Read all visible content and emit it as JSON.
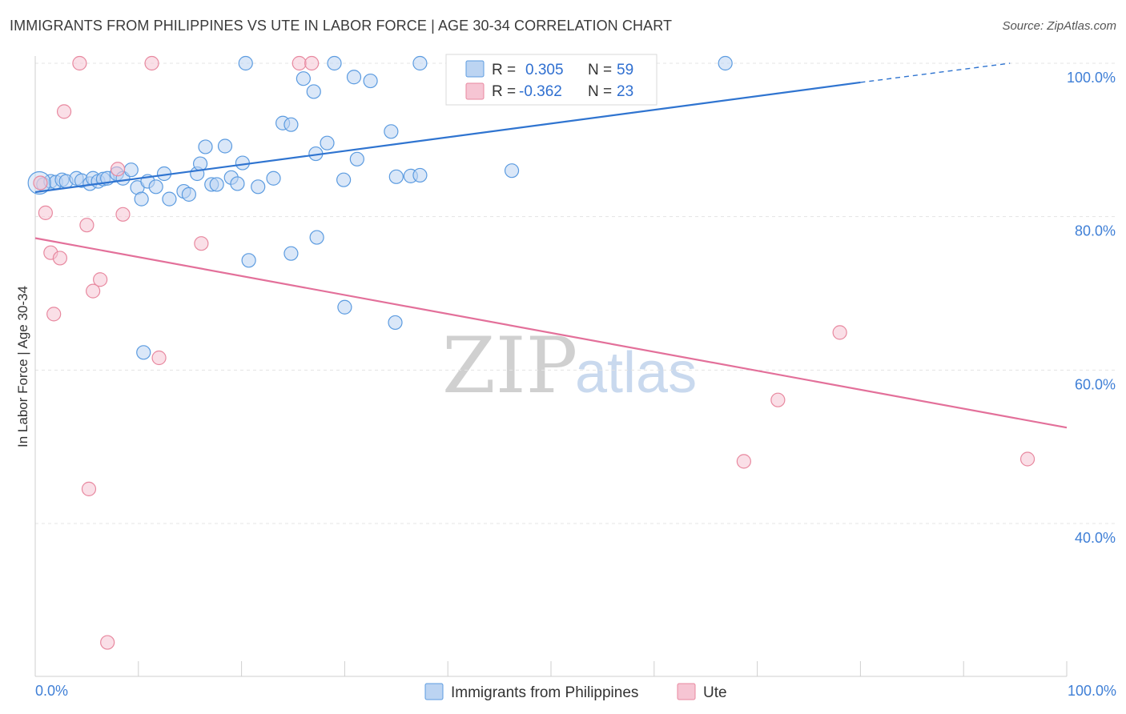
{
  "header": {
    "title": "IMMIGRANTS FROM PHILIPPINES VS UTE IN LABOR FORCE | AGE 30-34 CORRELATION CHART",
    "source": "Source: ZipAtlas.com"
  },
  "watermark": {
    "zip": "ZIP",
    "atlas": "atlas"
  },
  "colors": {
    "blue": "#5b9be0",
    "blue_fill": "#bcd4f2",
    "blue_line": "#2f74d0",
    "pink": "#e8889f",
    "pink_fill": "#f6c5d3",
    "pink_line": "#e3709a",
    "grid": "#e4e4e4",
    "tick_text": "#3f7fd6"
  },
  "legend": {
    "blue": {
      "r_label": "R =",
      "r_value": "0.305",
      "n_label": "N =",
      "n_value": "59"
    },
    "pink": {
      "r_label": "R =",
      "r_value": "-0.362",
      "n_label": "N =",
      "n_value": "23"
    }
  },
  "chart_data": {
    "type": "scatter",
    "title": "IMMIGRANTS FROM PHILIPPINES VS UTE IN LABOR FORCE | AGE 30-34 CORRELATION CHART",
    "xlabel": "",
    "ylabel": "In Labor Force | Age 30-34",
    "xlim": [
      0,
      100
    ],
    "ylim": [
      22,
      101
    ],
    "x_tick_labels": [
      "0.0%",
      "100.0%"
    ],
    "y_ticks": [
      100,
      80,
      60,
      40
    ],
    "y_tick_labels": [
      "100.0%",
      "80.0%",
      "60.0%",
      "40.0%"
    ],
    "grid": true,
    "legend_position": "top-center",
    "series": [
      {
        "name": "Immigrants from Philippines",
        "color": "#5b9be0",
        "r": 0.305,
        "n": 59,
        "trend": {
          "x": [
            0,
            80
          ],
          "y": [
            83.2,
            97.5
          ],
          "dashed_to": [
            94.5,
            100
          ]
        },
        "points": [
          [
            0.8,
            84.2
          ],
          [
            1.5,
            84.6
          ],
          [
            2.0,
            84.5
          ],
          [
            2.6,
            84.8
          ],
          [
            3.0,
            84.6
          ],
          [
            4.0,
            85.0
          ],
          [
            4.5,
            84.7
          ],
          [
            5.3,
            84.3
          ],
          [
            5.6,
            85.0
          ],
          [
            6.1,
            84.6
          ],
          [
            6.6,
            84.9
          ],
          [
            7.0,
            85.0
          ],
          [
            7.9,
            85.6
          ],
          [
            8.5,
            85.0
          ],
          [
            9.3,
            86.1
          ],
          [
            9.9,
            83.8
          ],
          [
            10.3,
            82.3
          ],
          [
            10.9,
            84.6
          ],
          [
            11.7,
            83.9
          ],
          [
            12.5,
            85.6
          ],
          [
            13.0,
            82.3
          ],
          [
            14.4,
            83.3
          ],
          [
            14.9,
            82.9
          ],
          [
            15.7,
            85.6
          ],
          [
            16.0,
            86.9
          ],
          [
            16.5,
            89.1
          ],
          [
            17.1,
            84.2
          ],
          [
            17.6,
            84.2
          ],
          [
            18.4,
            89.2
          ],
          [
            19.0,
            85.1
          ],
          [
            19.6,
            84.3
          ],
          [
            20.1,
            87.0
          ],
          [
            21.6,
            83.9
          ],
          [
            23.1,
            85.0
          ],
          [
            24.0,
            92.2
          ],
          [
            24.8,
            92.0
          ],
          [
            20.4,
            100.0
          ],
          [
            26.0,
            98.0
          ],
          [
            27.0,
            96.3
          ],
          [
            27.2,
            88.2
          ],
          [
            28.3,
            89.6
          ],
          [
            29.0,
            100.0
          ],
          [
            29.9,
            84.8
          ],
          [
            30.9,
            98.2
          ],
          [
            31.2,
            87.5
          ],
          [
            32.5,
            97.7
          ],
          [
            34.5,
            91.1
          ],
          [
            35.0,
            85.2
          ],
          [
            36.4,
            85.3
          ],
          [
            37.3,
            100.0
          ],
          [
            37.3,
            85.4
          ],
          [
            46.2,
            86.0
          ],
          [
            20.7,
            74.3
          ],
          [
            24.8,
            75.2
          ],
          [
            27.3,
            77.3
          ],
          [
            30.0,
            68.2
          ],
          [
            34.9,
            66.2
          ],
          [
            10.5,
            62.3
          ],
          [
            66.9,
            100.0
          ]
        ]
      },
      {
        "name": "Ute",
        "color": "#e8889f",
        "r": -0.362,
        "n": 23,
        "trend": {
          "x": [
            0,
            100
          ],
          "y": [
            77.2,
            52.5
          ]
        },
        "points": [
          [
            0.5,
            84.4
          ],
          [
            1.0,
            80.5
          ],
          [
            1.5,
            75.3
          ],
          [
            1.8,
            67.3
          ],
          [
            2.4,
            74.6
          ],
          [
            2.8,
            93.7
          ],
          [
            4.3,
            100.0
          ],
          [
            5.0,
            78.9
          ],
          [
            5.2,
            44.5
          ],
          [
            5.6,
            70.3
          ],
          [
            6.3,
            71.8
          ],
          [
            7.0,
            24.5
          ],
          [
            8.0,
            86.2
          ],
          [
            8.5,
            80.3
          ],
          [
            11.3,
            100.0
          ],
          [
            12.0,
            61.6
          ],
          [
            16.1,
            76.5
          ],
          [
            25.6,
            100.0
          ],
          [
            26.8,
            100.0
          ],
          [
            68.7,
            48.1
          ],
          [
            72.0,
            56.1
          ],
          [
            78.0,
            64.9
          ],
          [
            96.2,
            48.4
          ]
        ]
      }
    ]
  },
  "bottom_legend": {
    "items": [
      {
        "label": "Immigrants from Philippines",
        "color": "blue"
      },
      {
        "label": "Ute",
        "color": "pink"
      }
    ]
  }
}
